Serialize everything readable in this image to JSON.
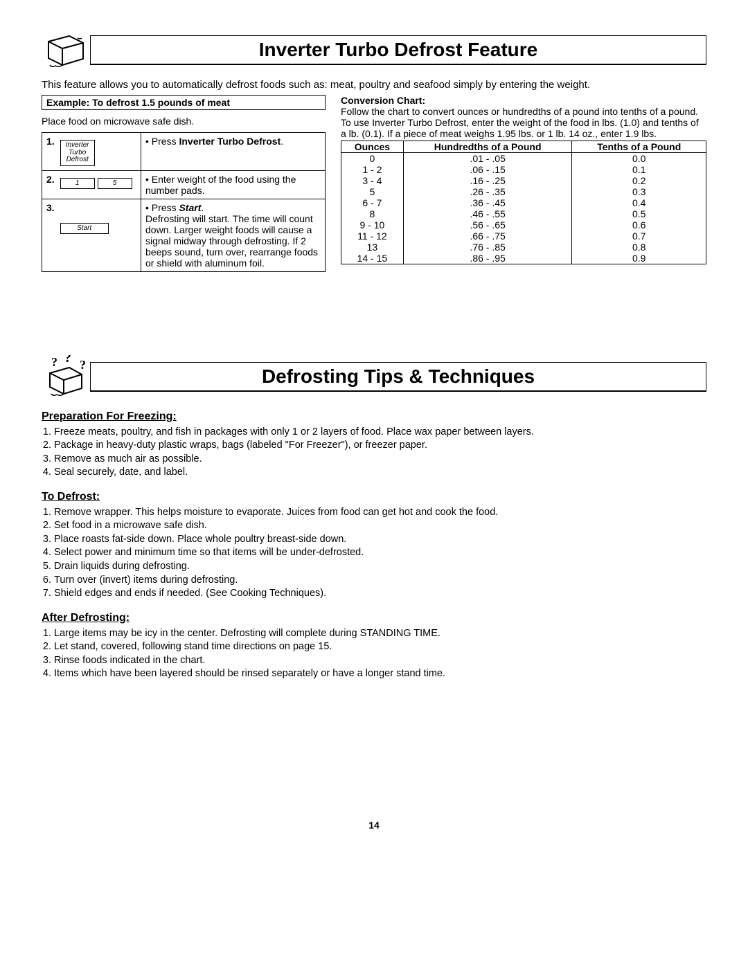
{
  "section1": {
    "title": "Inverter Turbo Defrost Feature",
    "intro": "This feature allows you to automatically defrost foods such as: meat, poultry and seafood simply by entering the weight.",
    "example_bar": "Example: To defrost 1.5 pounds of meat",
    "place_food": "Place food on microwave safe dish.",
    "steps": [
      {
        "num": "1.",
        "button_lines": [
          "Inverter",
          "Turbo",
          "Defrost"
        ],
        "text_html": "• Press <b>Inverter Turbo Defrost</b>."
      },
      {
        "num": "2.",
        "button_pair": [
          "1",
          "5"
        ],
        "text_html": "• Enter weight of the food using the number pads."
      },
      {
        "num": "3.",
        "button_single": "Start",
        "text_html": "• Press <b><i>Start</i></b>.<br>Defrosting will start. The time will count down. Larger weight foods will cause a signal midway through defrosting. If 2 beeps sound, turn over, rearrange foods or shield with aluminum foil."
      }
    ],
    "conversion": {
      "head": "Conversion Chart:",
      "text": "Follow the chart to convert ounces or hundredths of a pound into tenths of a pound. To use Inverter Turbo Defrost, enter the weight of the food in lbs. (1.0) and tenths of a lb. (0.1). If a piece of meat weighs 1.95 lbs. or 1 lb. 14 oz., enter 1.9 lbs.",
      "columns": [
        "Ounces",
        "Hundredths of a Pound",
        "Tenths of a Pound"
      ],
      "rows": [
        [
          "0",
          ".01 - .05",
          "0.0"
        ],
        [
          "1 - 2",
          ".06 - .15",
          "0.1"
        ],
        [
          "3 - 4",
          ".16 - .25",
          "0.2"
        ],
        [
          "5",
          ".26 - .35",
          "0.3"
        ],
        [
          "6 - 7",
          ".36 - .45",
          "0.4"
        ],
        [
          "8",
          ".46 - .55",
          "0.5"
        ],
        [
          "9 - 10",
          ".56 - .65",
          "0.6"
        ],
        [
          "11 - 12",
          ".66 - .75",
          "0.7"
        ],
        [
          "13",
          ".76 - .85",
          "0.8"
        ],
        [
          "14 - 15",
          ".86 - .95",
          "0.9"
        ]
      ]
    }
  },
  "section2": {
    "title": "Defrosting Tips & Techniques",
    "groups": [
      {
        "head": "Preparation For Freezing:",
        "items": [
          "Freeze meats, poultry, and fish in packages with only 1 or 2 layers of food. Place wax paper between layers.",
          "Package in heavy-duty plastic wraps, bags (labeled \"For Freezer\"), or freezer paper.",
          "Remove as much air as possible.",
          "Seal securely, date, and label."
        ]
      },
      {
        "head": "To Defrost:",
        "items": [
          "Remove wrapper. This helps moisture to evaporate. Juices from food can get hot and cook the food.",
          "Set food in a microwave safe dish.",
          "Place roasts fat-side down. Place whole poultry breast-side down.",
          "Select power and minimum time so that items will be under-defrosted.",
          "Drain liquids during defrosting.",
          "Turn over (invert) items during defrosting.",
          "Shield edges and ends if needed. (See Cooking Techniques)."
        ]
      },
      {
        "head": "After Defrosting:",
        "items": [
          "Large items may be icy in the center. Defrosting will complete during STANDING TIME.",
          "Let stand, covered, following stand time directions on page 15.",
          "Rinse foods indicated in the chart.",
          "Items which have been layered should be rinsed separately or have a longer stand time."
        ]
      }
    ]
  },
  "page_number": "14"
}
